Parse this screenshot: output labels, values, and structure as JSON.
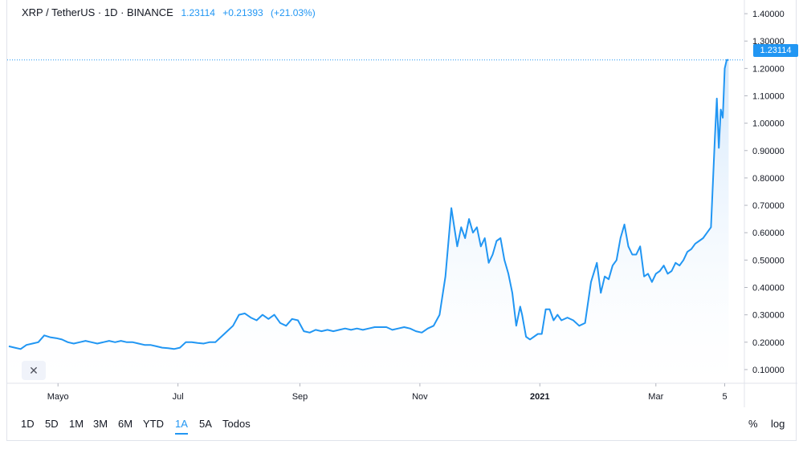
{
  "legend": {
    "symbol": "XRP / TetherUS · 1D · BINANCE",
    "last": "1.23114",
    "change": "+0.21393",
    "change_pct": "(+21.03%)"
  },
  "price_label": "1.23114",
  "reset_label": "✕",
  "ranges": [
    {
      "label": "1D",
      "active": false
    },
    {
      "label": "5D",
      "active": false
    },
    {
      "label": "1M",
      "active": false
    },
    {
      "label": "3M",
      "active": false
    },
    {
      "label": "6M",
      "active": false
    },
    {
      "label": "YTD",
      "active": false
    },
    {
      "label": "1A",
      "active": true
    },
    {
      "label": "5A",
      "active": false
    },
    {
      "label": "Todos",
      "active": false
    }
  ],
  "scale_buttons": {
    "percent": "%",
    "log": "log"
  },
  "colors": {
    "line": "#2196f3",
    "area_top": "#d6e9fb",
    "grid": "#e0e3eb",
    "text": "#131722"
  },
  "chart_data": {
    "type": "area",
    "title": "XRP / TetherUS · 1D · BINANCE",
    "xlabel": "",
    "ylabel": "",
    "ylim": [
      0.05,
      1.45
    ],
    "x_ticks": [
      {
        "label": "Mayo",
        "bold": false,
        "date": "2020-05-01"
      },
      {
        "label": "Jul",
        "bold": false,
        "date": "2020-07-01"
      },
      {
        "label": "Sep",
        "bold": false,
        "date": "2020-09-01"
      },
      {
        "label": "Nov",
        "bold": false,
        "date": "2020-11-01"
      },
      {
        "label": "2021",
        "bold": true,
        "date": "2021-01-01"
      },
      {
        "label": "Mar",
        "bold": false,
        "date": "2021-03-01"
      },
      {
        "label": "5",
        "bold": false,
        "date": "2021-04-05"
      }
    ],
    "y_ticks": [
      "0.10000",
      "0.20000",
      "0.30000",
      "0.40000",
      "0.50000",
      "0.60000",
      "0.70000",
      "0.80000",
      "0.90000",
      "1.00000",
      "1.10000",
      "1.20000",
      "1.30000",
      "1.40000"
    ],
    "y_tick_values": [
      0.1,
      0.2,
      0.3,
      0.4,
      0.5,
      0.6,
      0.7,
      0.8,
      0.9,
      1.0,
      1.1,
      1.2,
      1.3,
      1.4
    ],
    "last_value": 1.23114,
    "grid": false,
    "series": [
      {
        "x": [
          "2020-04-06",
          "2020-04-09",
          "2020-04-12",
          "2020-04-15",
          "2020-04-18",
          "2020-04-21",
          "2020-04-24",
          "2020-04-27",
          "2020-04-30",
          "2020-05-03",
          "2020-05-06",
          "2020-05-09",
          "2020-05-12",
          "2020-05-15",
          "2020-05-18",
          "2020-05-21",
          "2020-05-24",
          "2020-05-27",
          "2020-05-30",
          "2020-06-02",
          "2020-06-05",
          "2020-06-08",
          "2020-06-11",
          "2020-06-14",
          "2020-06-17",
          "2020-06-20",
          "2020-06-23",
          "2020-06-26",
          "2020-06-29",
          "2020-07-02",
          "2020-07-05",
          "2020-07-08",
          "2020-07-11",
          "2020-07-14",
          "2020-07-17",
          "2020-07-20",
          "2020-07-23",
          "2020-07-26",
          "2020-07-29",
          "2020-08-01",
          "2020-08-04",
          "2020-08-07",
          "2020-08-10",
          "2020-08-13",
          "2020-08-16",
          "2020-08-19",
          "2020-08-22",
          "2020-08-25",
          "2020-08-28",
          "2020-08-31",
          "2020-09-03",
          "2020-09-06",
          "2020-09-09",
          "2020-09-12",
          "2020-09-15",
          "2020-09-18",
          "2020-09-21",
          "2020-09-24",
          "2020-09-27",
          "2020-09-30",
          "2020-10-03",
          "2020-10-06",
          "2020-10-09",
          "2020-10-12",
          "2020-10-15",
          "2020-10-18",
          "2020-10-21",
          "2020-10-24",
          "2020-10-27",
          "2020-10-30",
          "2020-11-02",
          "2020-11-05",
          "2020-11-08",
          "2020-11-11",
          "2020-11-14",
          "2020-11-17",
          "2020-11-20",
          "2020-11-22",
          "2020-11-24",
          "2020-11-26",
          "2020-11-28",
          "2020-11-30",
          "2020-12-02",
          "2020-12-04",
          "2020-12-06",
          "2020-12-08",
          "2020-12-10",
          "2020-12-12",
          "2020-12-14",
          "2020-12-16",
          "2020-12-18",
          "2020-12-20",
          "2020-12-22",
          "2020-12-23",
          "2020-12-25",
          "2020-12-27",
          "2020-12-29",
          "2020-12-31",
          "2021-01-02",
          "2021-01-04",
          "2021-01-06",
          "2021-01-08",
          "2021-01-10",
          "2021-01-12",
          "2021-01-15",
          "2021-01-18",
          "2021-01-21",
          "2021-01-24",
          "2021-01-27",
          "2021-01-30",
          "2021-02-01",
          "2021-02-03",
          "2021-02-05",
          "2021-02-07",
          "2021-02-09",
          "2021-02-11",
          "2021-02-13",
          "2021-02-15",
          "2021-02-17",
          "2021-02-19",
          "2021-02-21",
          "2021-02-23",
          "2021-02-25",
          "2021-02-27",
          "2021-03-01",
          "2021-03-03",
          "2021-03-05",
          "2021-03-07",
          "2021-03-09",
          "2021-03-11",
          "2021-03-13",
          "2021-03-15",
          "2021-03-17",
          "2021-03-19",
          "2021-03-21",
          "2021-03-23",
          "2021-03-25",
          "2021-03-27",
          "2021-03-29",
          "2021-03-31",
          "2021-04-01",
          "2021-04-02",
          "2021-04-03",
          "2021-04-04",
          "2021-04-05",
          "2021-04-06",
          "2021-04-07"
        ],
        "y": [
          0.185,
          0.18,
          0.175,
          0.19,
          0.195,
          0.2,
          0.225,
          0.218,
          0.215,
          0.21,
          0.2,
          0.195,
          0.2,
          0.205,
          0.2,
          0.195,
          0.2,
          0.205,
          0.2,
          0.205,
          0.2,
          0.2,
          0.195,
          0.19,
          0.19,
          0.185,
          0.18,
          0.178,
          0.175,
          0.18,
          0.2,
          0.2,
          0.197,
          0.195,
          0.2,
          0.2,
          0.22,
          0.24,
          0.26,
          0.3,
          0.305,
          0.29,
          0.28,
          0.3,
          0.285,
          0.3,
          0.27,
          0.26,
          0.285,
          0.28,
          0.24,
          0.235,
          0.245,
          0.24,
          0.245,
          0.24,
          0.245,
          0.25,
          0.245,
          0.25,
          0.245,
          0.25,
          0.255,
          0.255,
          0.255,
          0.245,
          0.25,
          0.255,
          0.25,
          0.24,
          0.235,
          0.25,
          0.26,
          0.3,
          0.44,
          0.69,
          0.55,
          0.62,
          0.58,
          0.65,
          0.6,
          0.62,
          0.55,
          0.58,
          0.49,
          0.52,
          0.57,
          0.58,
          0.5,
          0.45,
          0.38,
          0.26,
          0.33,
          0.3,
          0.22,
          0.21,
          0.22,
          0.23,
          0.23,
          0.32,
          0.32,
          0.28,
          0.3,
          0.28,
          0.29,
          0.28,
          0.26,
          0.27,
          0.42,
          0.49,
          0.38,
          0.44,
          0.43,
          0.48,
          0.5,
          0.58,
          0.63,
          0.55,
          0.52,
          0.52,
          0.55,
          0.44,
          0.45,
          0.42,
          0.45,
          0.46,
          0.48,
          0.45,
          0.46,
          0.49,
          0.48,
          0.5,
          0.53,
          0.54,
          0.56,
          0.57,
          0.58,
          0.6,
          0.62,
          0.95,
          1.09,
          0.91,
          1.05,
          1.02,
          1.2,
          1.23114,
          1.23114
        ]
      }
    ]
  }
}
